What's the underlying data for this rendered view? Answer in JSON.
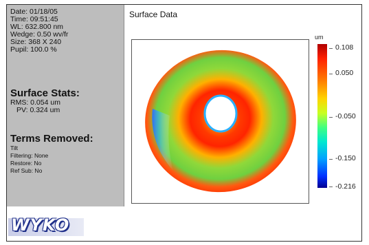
{
  "info": {
    "date": "Date:  01/18/05",
    "time": "Time:  09:51:45",
    "wl": "WL: 632.800 nm",
    "wedge": "Wedge:  0.50 wv/fr",
    "size": "Size:  368 X 240",
    "pupil": "Pupil: 100.0 %"
  },
  "stats": {
    "title": "Surface Stats:",
    "rms": "RMS:  0.054 um",
    "pv": "PV:  0.324 um"
  },
  "terms": {
    "title": "Terms Removed:",
    "tilt": "Tilt",
    "filtering": "Filtering:  None",
    "restore": "Restore:  No",
    "ref_sub": "Ref Sub:  No"
  },
  "logo": "WYKO",
  "plot": {
    "title": "Surface Data",
    "unit": "um"
  },
  "colorbar": {
    "ticks": [
      "0.108",
      "0.050",
      "-0.050",
      "-0.150",
      "-0.216"
    ],
    "colors": [
      "#b00000",
      "#ff7a00",
      "#c8ff20",
      "#00a0ff",
      "#000090"
    ]
  }
}
